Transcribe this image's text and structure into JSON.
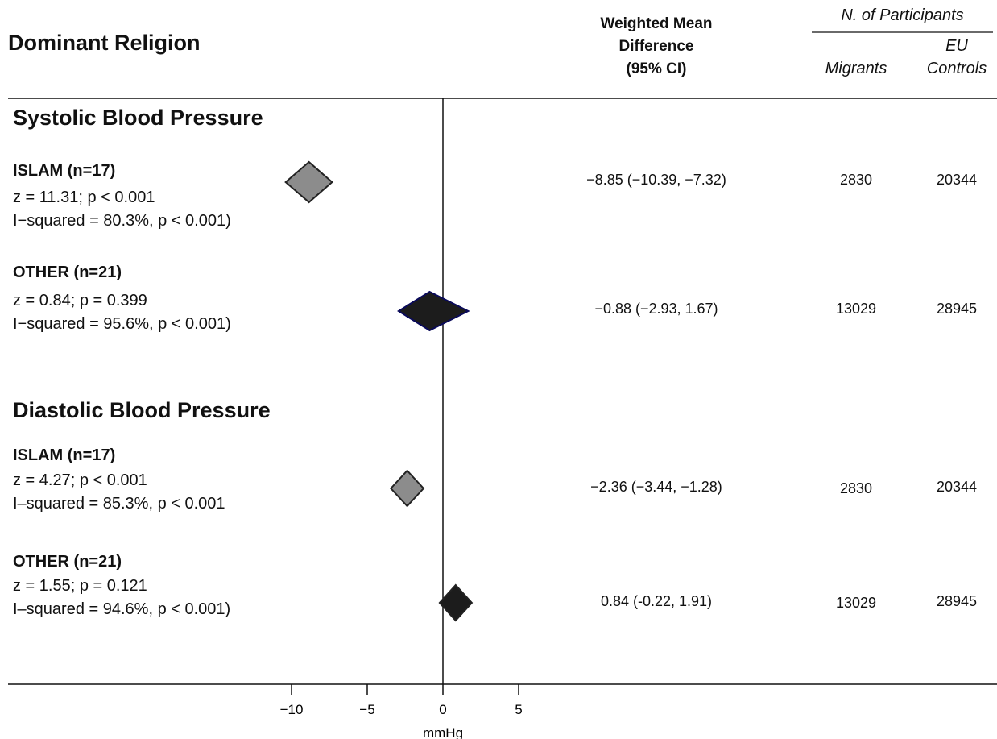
{
  "header": {
    "title": "Dominant Religion",
    "wmd_line1": "Weighted Mean",
    "wmd_line2": "Difference",
    "wmd_line3": "(95% CI)",
    "participants_title": "N. of Participants",
    "col_migrants": "Migrants",
    "col_controls_line1": "EU",
    "col_controls_line2": "Controls"
  },
  "sections": [
    {
      "title": "Systolic Blood Pressure",
      "groups": [
        {
          "label": "ISLAM (n=17)",
          "z_line": "z = 11.31; p < 0.001",
          "i2_line": "I−squared = 80.3%, p < 0.001)",
          "wmd_text": "−8.85 (−10.39, −7.32)",
          "migrants": "2830",
          "controls": "20344"
        },
        {
          "label": "OTHER (n=21)",
          "z_line": "z = 0.84; p = 0.399",
          "i2_line": "I−squared = 95.6%, p < 0.001)",
          "wmd_text": "−0.88 (−2.93, 1.67)",
          "migrants": "13029",
          "controls": "28945"
        }
      ]
    },
    {
      "title": "Diastolic Blood Pressure",
      "groups": [
        {
          "label": "ISLAM (n=17)",
          "z_line": "z =  4.27; p < 0.001",
          "i2_line": "I–squared = 85.3%, p < 0.001",
          "wmd_text": "−2.36 (−3.44, −1.28)",
          "migrants": "2830",
          "controls": "20344"
        },
        {
          "label": "OTHER (n=21)",
          "z_line": "z = 1.55; p = 0.121",
          "i2_line": "I–squared = 94.6%, p < 0.001)",
          "wmd_text": "0.84 (-0.22, 1.91)",
          "migrants": "13029",
          "controls": "28945"
        }
      ]
    }
  ],
  "chart_data": {
    "type": "forest",
    "xlabel": "mmHg",
    "xticks": [
      -10,
      -5,
      0,
      5
    ],
    "xtick_labels": [
      "−10",
      "−5",
      "0",
      "5"
    ],
    "null_value": 0,
    "estimates": [
      {
        "section": "Systolic Blood Pressure",
        "group": "ISLAM",
        "est": -8.85,
        "lo": -10.39,
        "hi": -7.32,
        "color": "#8c8c8c"
      },
      {
        "section": "Systolic Blood Pressure",
        "group": "OTHER",
        "est": -0.88,
        "lo": -2.93,
        "hi": 1.67,
        "color": "#1c1c1c"
      },
      {
        "section": "Diastolic Blood Pressure",
        "group": "ISLAM",
        "est": -2.36,
        "lo": -3.44,
        "hi": -1.28,
        "color": "#8c8c8c"
      },
      {
        "section": "Diastolic Blood Pressure",
        "group": "OTHER",
        "est": 0.84,
        "lo": -0.22,
        "hi": 1.91,
        "color": "#1c1c1c"
      }
    ]
  }
}
